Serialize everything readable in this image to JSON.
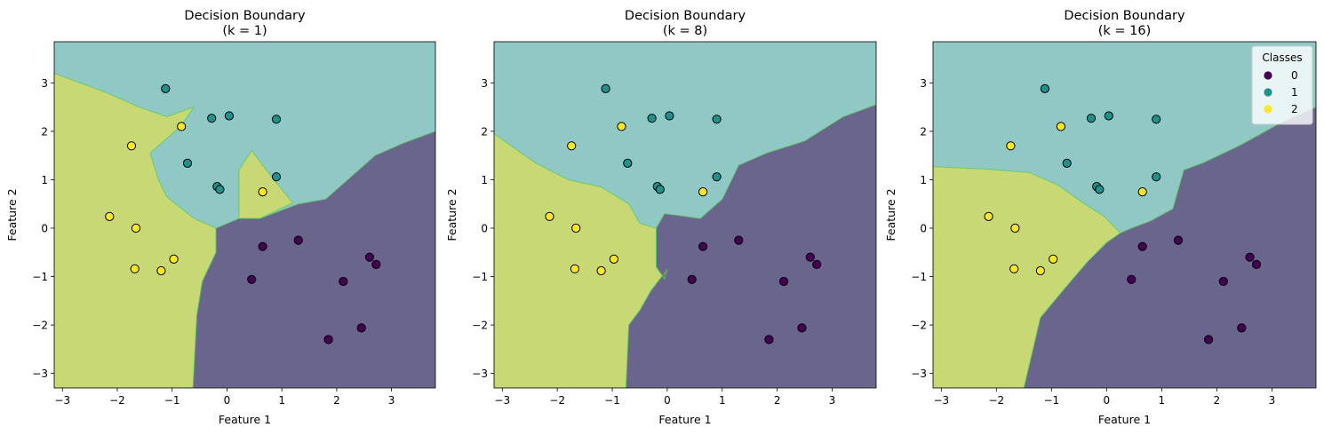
{
  "colors": {
    "class0": "#440154",
    "class1": "#21918c",
    "class2": "#fde725",
    "region_alpha": 0.5,
    "marker_edge": "#000000",
    "boundary_line": "#5ec962"
  },
  "chart_data": [
    {
      "type": "scatter",
      "title": "Decision Boundary\n(k = 1)",
      "xlabel": "Feature 1",
      "ylabel": "Feature 2",
      "xlim": [
        -3.15,
        3.8
      ],
      "ylim": [
        -3.3,
        3.85
      ],
      "xticks": [
        -3,
        -2,
        -1,
        0,
        1,
        2,
        3
      ],
      "yticks": [
        -3,
        -2,
        -1,
        0,
        1,
        2,
        3
      ],
      "regions": [
        {
          "class": 2,
          "polygon": [
            [
              -3.15,
              3.2
            ],
            [
              -2.2,
              2.8
            ],
            [
              -1.6,
              2.5
            ],
            [
              -1.1,
              2.3
            ],
            [
              -0.6,
              2.5
            ],
            [
              -0.85,
              2.1
            ],
            [
              -1.2,
              1.75
            ],
            [
              -1.4,
              1.55
            ],
            [
              -1.25,
              1.0
            ],
            [
              -1.1,
              0.65
            ],
            [
              -0.6,
              0.2
            ],
            [
              -0.2,
              0.0
            ],
            [
              -0.2,
              -0.5
            ],
            [
              -0.45,
              -1.1
            ],
            [
              -0.55,
              -1.8
            ],
            [
              -0.62,
              -3.3
            ],
            [
              -3.15,
              -3.3
            ]
          ]
        },
        {
          "class": 2,
          "polygon": [
            [
              0.22,
              0.2
            ],
            [
              0.22,
              1.2
            ],
            [
              0.45,
              1.6
            ],
            [
              0.82,
              1.05
            ],
            [
              1.2,
              0.52
            ],
            [
              0.6,
              0.2
            ]
          ]
        },
        {
          "class": 0,
          "polygon": [
            [
              3.8,
              2.0
            ],
            [
              3.2,
              1.75
            ],
            [
              2.7,
              1.5
            ],
            [
              2.1,
              0.9
            ],
            [
              1.8,
              0.6
            ],
            [
              1.3,
              0.5
            ],
            [
              0.6,
              0.2
            ],
            [
              0.22,
              0.2
            ],
            [
              -0.2,
              0.0
            ],
            [
              -0.2,
              -0.5
            ],
            [
              -0.45,
              -1.1
            ],
            [
              -0.55,
              -1.8
            ],
            [
              -0.62,
              -3.3
            ],
            [
              3.8,
              -3.3
            ]
          ]
        }
      ],
      "series": [
        {
          "class": 0,
          "x": [
            0.45,
            0.65,
            1.3,
            2.12,
            2.6,
            2.72,
            1.85,
            2.45
          ],
          "y": [
            -1.06,
            -0.38,
            -0.25,
            -1.1,
            -0.6,
            -0.75,
            -2.3,
            -2.06
          ]
        },
        {
          "class": 1,
          "x": [
            -1.12,
            -0.28,
            0.04,
            0.9,
            -0.72,
            -0.18,
            -0.13,
            0.9
          ],
          "y": [
            2.88,
            2.27,
            2.32,
            2.25,
            1.34,
            0.86,
            0.8,
            1.06
          ]
        },
        {
          "class": 2,
          "x": [
            -1.74,
            -0.83,
            -2.14,
            -1.66,
            -1.68,
            -0.97,
            -1.2,
            0.65
          ],
          "y": [
            1.7,
            2.1,
            0.24,
            0.0,
            -0.84,
            -0.64,
            -0.88,
            0.75
          ]
        }
      ]
    },
    {
      "type": "scatter",
      "title": "Decision Boundary\n(k = 8)",
      "xlabel": "Feature 1",
      "ylabel": "Feature 2",
      "xlim": [
        -3.15,
        3.8
      ],
      "ylim": [
        -3.3,
        3.85
      ],
      "xticks": [
        -3,
        -2,
        -1,
        0,
        1,
        2,
        3
      ],
      "yticks": [
        -3,
        -2,
        -1,
        0,
        1,
        2,
        3
      ],
      "regions": [
        {
          "class": 2,
          "polygon": [
            [
              -3.15,
              1.95
            ],
            [
              -2.4,
              1.35
            ],
            [
              -1.8,
              1.0
            ],
            [
              -1.2,
              0.85
            ],
            [
              -0.7,
              0.5
            ],
            [
              -0.5,
              0.1
            ],
            [
              -0.2,
              0.0
            ],
            [
              -0.2,
              -0.8
            ],
            [
              -0.05,
              -1.05
            ],
            [
              0.0,
              -0.85
            ],
            [
              -0.3,
              -1.3
            ],
            [
              -0.5,
              -1.7
            ],
            [
              -0.7,
              -2.0
            ],
            [
              -0.75,
              -3.3
            ],
            [
              -3.15,
              -3.3
            ]
          ]
        },
        {
          "class": 0,
          "polygon": [
            [
              3.8,
              2.55
            ],
            [
              3.2,
              2.3
            ],
            [
              2.5,
              1.8
            ],
            [
              1.8,
              1.55
            ],
            [
              1.3,
              1.3
            ],
            [
              1.0,
              0.6
            ],
            [
              0.6,
              0.2
            ],
            [
              -0.05,
              0.3
            ],
            [
              -0.2,
              0.0
            ],
            [
              -0.2,
              -0.8
            ],
            [
              -0.05,
              -1.05
            ],
            [
              0.0,
              -0.85
            ],
            [
              -0.3,
              -1.3
            ],
            [
              -0.5,
              -1.7
            ],
            [
              -0.7,
              -2.0
            ],
            [
              -0.75,
              -3.3
            ],
            [
              3.8,
              -3.3
            ]
          ]
        }
      ],
      "series": [
        {
          "class": 0,
          "x": [
            0.45,
            0.65,
            1.3,
            2.12,
            2.6,
            2.72,
            1.85,
            2.45
          ],
          "y": [
            -1.06,
            -0.38,
            -0.25,
            -1.1,
            -0.6,
            -0.75,
            -2.3,
            -2.06
          ]
        },
        {
          "class": 1,
          "x": [
            -1.12,
            -0.28,
            0.04,
            0.9,
            -0.72,
            -0.18,
            -0.13,
            0.9
          ],
          "y": [
            2.88,
            2.27,
            2.32,
            2.25,
            1.34,
            0.86,
            0.8,
            1.06
          ]
        },
        {
          "class": 2,
          "x": [
            -1.74,
            -0.83,
            -2.14,
            -1.66,
            -1.68,
            -0.97,
            -1.2,
            0.65
          ],
          "y": [
            1.7,
            2.1,
            0.24,
            0.0,
            -0.84,
            -0.64,
            -0.88,
            0.75
          ]
        }
      ]
    },
    {
      "type": "scatter",
      "title": "Decision Boundary\n(k = 16)",
      "xlabel": "Feature 1",
      "ylabel": "Feature 2",
      "xlim": [
        -3.15,
        3.8
      ],
      "ylim": [
        -3.3,
        3.85
      ],
      "xticks": [
        -3,
        -2,
        -1,
        0,
        1,
        2,
        3
      ],
      "yticks": [
        -3,
        -2,
        -1,
        0,
        1,
        2,
        3
      ],
      "legend": {
        "title": "Classes",
        "labels": [
          "0",
          "1",
          "2"
        ],
        "position": "top-right"
      },
      "regions": [
        {
          "class": 2,
          "polygon": [
            [
              -3.15,
              1.27
            ],
            [
              -2.2,
              1.22
            ],
            [
              -1.4,
              1.15
            ],
            [
              -0.9,
              0.9
            ],
            [
              -0.4,
              0.5
            ],
            [
              -0.05,
              0.25
            ],
            [
              0.25,
              -0.1
            ],
            [
              0.0,
              -0.3
            ],
            [
              -0.35,
              -0.7
            ],
            [
              -0.8,
              -1.3
            ],
            [
              -1.2,
              -1.85
            ],
            [
              -1.5,
              -3.3
            ],
            [
              -3.15,
              -3.3
            ]
          ]
        },
        {
          "class": 0,
          "polygon": [
            [
              3.8,
              2.5
            ],
            [
              3.2,
              2.2
            ],
            [
              2.4,
              1.7
            ],
            [
              1.75,
              1.35
            ],
            [
              1.4,
              1.2
            ],
            [
              1.2,
              0.4
            ],
            [
              0.8,
              0.15
            ],
            [
              0.45,
              0.0
            ],
            [
              0.25,
              -0.1
            ],
            [
              0.0,
              -0.3
            ],
            [
              -0.35,
              -0.7
            ],
            [
              -0.8,
              -1.3
            ],
            [
              -1.2,
              -1.85
            ],
            [
              -1.5,
              -3.3
            ],
            [
              3.8,
              -3.3
            ]
          ]
        }
      ],
      "series": [
        {
          "class": 0,
          "x": [
            0.45,
            0.65,
            1.3,
            2.12,
            2.6,
            2.72,
            1.85,
            2.45
          ],
          "y": [
            -1.06,
            -0.38,
            -0.25,
            -1.1,
            -0.6,
            -0.75,
            -2.3,
            -2.06
          ]
        },
        {
          "class": 1,
          "x": [
            -1.12,
            -0.28,
            0.04,
            0.9,
            -0.72,
            -0.18,
            -0.13,
            0.9
          ],
          "y": [
            2.88,
            2.27,
            2.32,
            2.25,
            1.34,
            0.86,
            0.8,
            1.06
          ]
        },
        {
          "class": 2,
          "x": [
            -1.74,
            -0.83,
            -2.14,
            -1.66,
            -1.68,
            -0.97,
            -1.2,
            0.65
          ],
          "y": [
            1.7,
            2.1,
            0.24,
            0.0,
            -0.84,
            -0.64,
            -0.88,
            0.75
          ]
        }
      ]
    }
  ]
}
